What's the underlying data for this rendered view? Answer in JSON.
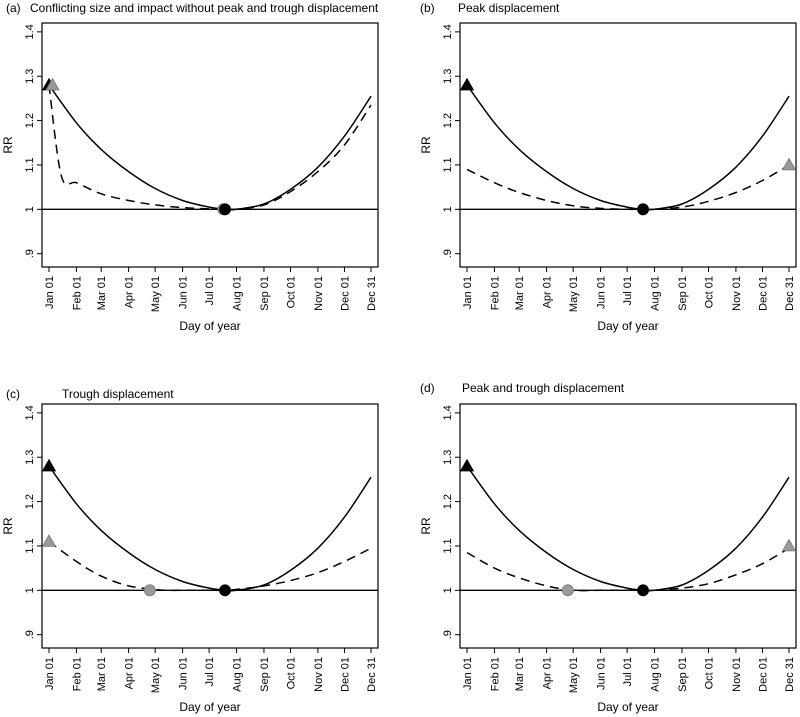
{
  "figure": {
    "xlabel": "Day of year",
    "ylabel": "RR",
    "month_labels": [
      "Jan 01",
      "Feb 01",
      "Mar 01",
      "Apr 01",
      "May 01",
      "Jun 01",
      "Jul 01",
      "Aug 01",
      "Sep 01",
      "Oct 01",
      "Nov 01",
      "Dec 01",
      "Dec 31"
    ],
    "month_days": [
      1,
      32,
      60,
      91,
      121,
      152,
      182,
      213,
      244,
      274,
      305,
      335,
      365
    ],
    "ytick_values": [
      0.9,
      1.0,
      1.1,
      1.2,
      1.3,
      1.4
    ],
    "ytick_labels": [
      ".9",
      "1",
      "1.1",
      "1.2",
      "1.3",
      "1.4"
    ]
  },
  "panels": [
    {
      "tag": "(a)",
      "title": "Conflicting size and impact without peak and trough displacement"
    },
    {
      "tag": "(b)",
      "title": "Peak displacement"
    },
    {
      "tag": "(c)",
      "title": "Trough displacement"
    },
    {
      "tag": "(d)",
      "title": "Peak and trough displacement"
    }
  ],
  "chart_data": [
    {
      "type": "line",
      "title": "Conflicting size and impact without peak and trough displacement",
      "xlabel": "Day of year",
      "ylabel": "RR",
      "ylim": [
        0.87,
        1.42
      ],
      "xlim": [
        1,
        365
      ],
      "reference_line": 1.0,
      "series": [
        {
          "name": "solid",
          "style": "solid",
          "x": [
            1,
            32,
            60,
            91,
            121,
            152,
            182,
            200,
            213,
            244,
            274,
            305,
            335,
            365
          ],
          "y": [
            1.28,
            1.195,
            1.135,
            1.085,
            1.047,
            1.02,
            1.005,
            1.0,
            1.0,
            1.012,
            1.045,
            1.095,
            1.165,
            1.255
          ]
        },
        {
          "name": "dashed",
          "style": "dashed",
          "x": [
            1,
            15,
            32,
            60,
            91,
            121,
            152,
            182,
            200,
            213,
            244,
            274,
            305,
            335,
            365
          ],
          "y": [
            1.28,
            1.075,
            1.06,
            1.035,
            1.02,
            1.01,
            1.004,
            1.001,
            1.0,
            1.0,
            1.01,
            1.04,
            1.085,
            1.145,
            1.235
          ]
        }
      ],
      "markers": [
        {
          "shape": "triangle",
          "color": "#000000",
          "x": 1,
          "y": 1.28
        },
        {
          "shape": "triangle",
          "color": "#9a9a9a",
          "x": 5,
          "y": 1.28
        },
        {
          "shape": "circle",
          "color": "#9a9a9a",
          "x": 198,
          "y": 1.0
        },
        {
          "shape": "circle",
          "color": "#000000",
          "x": 200,
          "y": 1.0
        }
      ]
    },
    {
      "type": "line",
      "title": "Peak displacement",
      "xlabel": "Day of year",
      "ylabel": "RR",
      "ylim": [
        0.87,
        1.42
      ],
      "xlim": [
        1,
        365
      ],
      "reference_line": 1.0,
      "series": [
        {
          "name": "solid",
          "style": "solid",
          "x": [
            1,
            32,
            60,
            91,
            121,
            152,
            182,
            200,
            213,
            244,
            274,
            305,
            335,
            365
          ],
          "y": [
            1.28,
            1.195,
            1.135,
            1.085,
            1.047,
            1.02,
            1.005,
            1.0,
            1.0,
            1.012,
            1.045,
            1.095,
            1.165,
            1.255
          ]
        },
        {
          "name": "dashed",
          "style": "dashed",
          "x": [
            1,
            32,
            60,
            91,
            121,
            152,
            182,
            200,
            213,
            244,
            274,
            305,
            335,
            365
          ],
          "y": [
            1.09,
            1.06,
            1.038,
            1.02,
            1.008,
            1.002,
            1.0,
            1.0,
            1.0,
            1.005,
            1.018,
            1.038,
            1.065,
            1.1
          ]
        }
      ],
      "markers": [
        {
          "shape": "triangle",
          "color": "#000000",
          "x": 1,
          "y": 1.28
        },
        {
          "shape": "triangle",
          "color": "#9a9a9a",
          "x": 365,
          "y": 1.1
        },
        {
          "shape": "circle",
          "color": "#9a9a9a",
          "x": 200,
          "y": 1.0
        },
        {
          "shape": "circle",
          "color": "#000000",
          "x": 200,
          "y": 1.0
        }
      ]
    },
    {
      "type": "line",
      "title": "Trough displacement",
      "xlabel": "Day of year",
      "ylabel": "RR",
      "ylim": [
        0.87,
        1.42
      ],
      "xlim": [
        1,
        365
      ],
      "reference_line": 1.0,
      "series": [
        {
          "name": "solid",
          "style": "solid",
          "x": [
            1,
            32,
            60,
            91,
            121,
            152,
            182,
            200,
            213,
            244,
            274,
            305,
            335,
            365
          ],
          "y": [
            1.28,
            1.195,
            1.135,
            1.085,
            1.047,
            1.02,
            1.005,
            1.0,
            1.0,
            1.012,
            1.045,
            1.095,
            1.165,
            1.255
          ]
        },
        {
          "name": "dashed",
          "style": "dashed",
          "x": [
            1,
            32,
            60,
            91,
            121,
            135,
            152,
            182,
            200,
            213,
            244,
            274,
            305,
            335,
            365
          ],
          "y": [
            1.11,
            1.065,
            1.032,
            1.01,
            1.002,
            1.0,
            1.0,
            1.0,
            1.0,
            1.002,
            1.01,
            1.022,
            1.04,
            1.065,
            1.095
          ]
        }
      ],
      "markers": [
        {
          "shape": "triangle",
          "color": "#000000",
          "x": 1,
          "y": 1.28
        },
        {
          "shape": "triangle",
          "color": "#9a9a9a",
          "x": 1,
          "y": 1.11
        },
        {
          "shape": "circle",
          "color": "#9a9a9a",
          "x": 115,
          "y": 1.0
        },
        {
          "shape": "circle",
          "color": "#000000",
          "x": 200,
          "y": 1.0
        }
      ]
    },
    {
      "type": "line",
      "title": "Peak and trough displacement",
      "xlabel": "Day of year",
      "ylabel": "RR",
      "ylim": [
        0.87,
        1.42
      ],
      "xlim": [
        1,
        365
      ],
      "reference_line": 1.0,
      "series": [
        {
          "name": "solid",
          "style": "solid",
          "x": [
            1,
            32,
            60,
            91,
            121,
            152,
            182,
            200,
            213,
            244,
            274,
            305,
            335,
            365
          ],
          "y": [
            1.28,
            1.195,
            1.135,
            1.085,
            1.047,
            1.02,
            1.005,
            1.0,
            1.0,
            1.012,
            1.045,
            1.095,
            1.165,
            1.255
          ]
        },
        {
          "name": "dashed",
          "style": "dashed",
          "x": [
            1,
            32,
            60,
            91,
            121,
            152,
            182,
            200,
            213,
            244,
            274,
            305,
            335,
            365
          ],
          "y": [
            1.085,
            1.05,
            1.028,
            1.01,
            1.0,
            1.0,
            1.0,
            1.0,
            1.0,
            1.005,
            1.015,
            1.035,
            1.06,
            1.095
          ]
        }
      ],
      "markers": [
        {
          "shape": "triangle",
          "color": "#000000",
          "x": 1,
          "y": 1.28
        },
        {
          "shape": "triangle",
          "color": "#9a9a9a",
          "x": 365,
          "y": 1.1
        },
        {
          "shape": "circle",
          "color": "#9a9a9a",
          "x": 115,
          "y": 1.0
        },
        {
          "shape": "circle",
          "color": "#000000",
          "x": 200,
          "y": 1.0
        }
      ]
    }
  ]
}
